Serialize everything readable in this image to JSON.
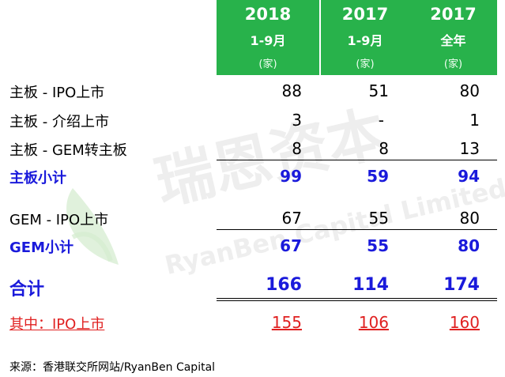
{
  "headers": [
    {
      "year": "2018",
      "period": "1-9月",
      "unit": "(家)"
    },
    {
      "year": "2017",
      "period": "1-9月",
      "unit": "(家)"
    },
    {
      "year": "2017",
      "period": "全年",
      "unit": "(家)"
    }
  ],
  "rows": [
    {
      "label": "主板 - IPO上市",
      "values": [
        "88",
        "51",
        "80"
      ]
    },
    {
      "label": "主板 - 介绍上市",
      "values": [
        "3",
        "-",
        "1"
      ]
    },
    {
      "label": "主板 - GEM转主板",
      "values": [
        "8",
        "8",
        "13"
      ]
    },
    {
      "label": "主板小计",
      "values": [
        "99",
        "59",
        "94"
      ]
    },
    {
      "label": "GEM - IPO上市",
      "values": [
        "67",
        "55",
        "80"
      ]
    },
    {
      "label": "GEM小计",
      "values": [
        "67",
        "55",
        "80"
      ]
    },
    {
      "label": "合计",
      "values": [
        "166",
        "114",
        "174"
      ]
    },
    {
      "label": "其中：IPO上市",
      "values": [
        "155",
        "106",
        "160"
      ]
    }
  ],
  "source": "来源：香港联交所网站/RyanBen Capital",
  "watermark": {
    "cn": "瑞恩资本",
    "en": "RyanBen Capital Limited"
  },
  "colors": {
    "header_bg": "#28b24b",
    "subtotal": "#1a1adb",
    "ipo": "#e02020"
  }
}
